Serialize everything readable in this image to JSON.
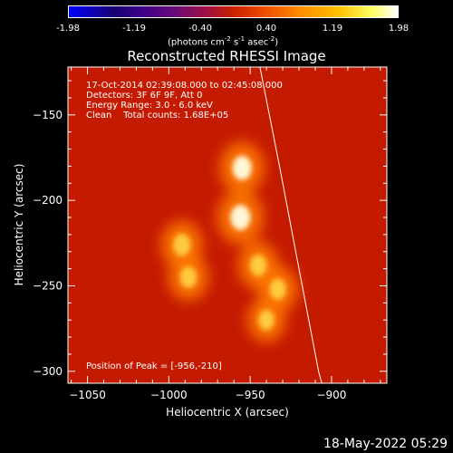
{
  "colorbar": {
    "ticks": [
      "-1.98",
      "-1.19",
      "-0.40",
      "0.40",
      "1.19",
      "1.98"
    ],
    "units_text": "(photons cm",
    "units_exp1": "-2",
    "units_mid": " s",
    "units_exp2": "-1",
    "units_end": " asec",
    "units_exp3": "-2",
    "units_close": ")"
  },
  "title": "Reconstructed RHESSI Image",
  "info": {
    "line1": "17-Oct-2014 02:39:08.000 to 02:45:08.000",
    "line2": "Detectors: 3F 6F 9F, Att 0",
    "line3": "Energy Range: 3.0 - 6.0 keV",
    "line4": "Clean    Total counts: 1.68E+05"
  },
  "peak_label": "Position of Peak = [-956,-210]",
  "timestamp": "18-May-2022 05:29",
  "chart_data": {
    "type": "heatmap",
    "title": "Reconstructed RHESSI Image",
    "xlabel": "Heliocentric X (arcsec)",
    "ylabel": "Heliocentric Y (arcsec)",
    "xlim": [
      -1062,
      -866
    ],
    "ylim": [
      -307,
      -122
    ],
    "xticks": [
      -1050,
      -1000,
      -950,
      -900
    ],
    "yticks": [
      -150,
      -200,
      -250,
      -300
    ],
    "xtick_labels": [
      "−1050",
      "−1000",
      "−950",
      "−900"
    ],
    "ytick_labels": [
      "−150",
      "−200",
      "−250",
      "−300"
    ],
    "colorbar_range": [
      -1.98,
      1.98
    ],
    "peak": [
      -956,
      -210
    ],
    "sources": [
      {
        "x": -956,
        "y": -210,
        "intensity": 1.98
      },
      {
        "x": -955,
        "y": -181,
        "intensity": 1.8
      },
      {
        "x": -992,
        "y": -226,
        "intensity": 1.45
      },
      {
        "x": -988,
        "y": -245,
        "intensity": 1.3
      },
      {
        "x": -945,
        "y": -238,
        "intensity": 1.35
      },
      {
        "x": -933,
        "y": -252,
        "intensity": 1.25
      },
      {
        "x": -940,
        "y": -270,
        "intensity": 1.1
      }
    ],
    "limb_points": [
      [
        -944,
        -122
      ],
      [
        -932,
        -180
      ],
      [
        -920,
        -240
      ],
      [
        -908,
        -300
      ],
      [
        -906,
        -307
      ]
    ]
  }
}
